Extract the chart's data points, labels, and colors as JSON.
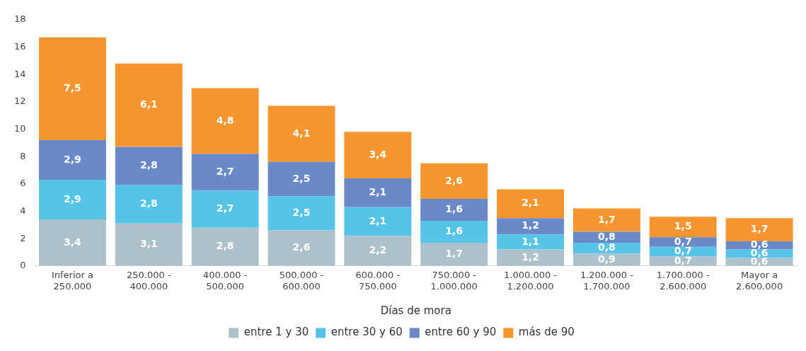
{
  "chart_data": {
    "type": "bar",
    "stacked": true,
    "xlabel": "Días de mora",
    "categories": [
      "Inferior a 250.000",
      "250.000 - 400.000",
      "400.000 - 500.000",
      "500.000 - 600.000",
      "600.000 - 750.000",
      "750.000 - 1.000.000",
      "1.000.000 - 1.200.000",
      "1.200.000 - 1.700.000",
      "1.700.000 - 2.600.000",
      "Mayor a 2.600.000"
    ],
    "series": [
      {
        "name": "entre 1 y 30",
        "color": "#adc1ca",
        "values": [
          3.4,
          3.1,
          2.8,
          2.6,
          2.2,
          1.7,
          1.2,
          0.9,
          0.7,
          0.6
        ],
        "value_labels": [
          "3,4",
          "3,1",
          "2,8",
          "2,6",
          "2,2",
          "1,7",
          "1,2",
          "0,9",
          "0,7",
          "0,6"
        ]
      },
      {
        "name": "entre 30 y 60",
        "color": "#56c4e9",
        "values": [
          2.9,
          2.8,
          2.7,
          2.5,
          2.1,
          1.6,
          1.1,
          0.8,
          0.7,
          0.6
        ],
        "value_labels": [
          "2,9",
          "2,8",
          "2,7",
          "2,5",
          "2,1",
          "1,6",
          "1,1",
          "0,8",
          "0,7",
          "0,6"
        ]
      },
      {
        "name": "entre 60 y 90",
        "color": "#6a89c8",
        "values": [
          2.9,
          2.8,
          2.7,
          2.5,
          2.1,
          1.6,
          1.2,
          0.8,
          0.7,
          0.6
        ],
        "value_labels": [
          "2,9",
          "2,8",
          "2,7",
          "2,5",
          "2,1",
          "1,6",
          "1,2",
          "0,8",
          "0,7",
          "0,6"
        ]
      },
      {
        "name": "más de 90",
        "color": "#f7952f",
        "values": [
          7.5,
          6.1,
          4.8,
          4.1,
          3.4,
          2.6,
          2.1,
          1.7,
          1.5,
          1.7
        ],
        "value_labels": [
          "7,5",
          "6,1",
          "4,8",
          "4,1",
          "3,4",
          "2,6",
          "2,1",
          "1,7",
          "1,5",
          "1,7"
        ]
      }
    ],
    "ylim": [
      0,
      18
    ],
    "yticks": [
      0,
      2,
      4,
      6,
      8,
      10,
      12,
      14,
      16,
      18
    ],
    "grid": false,
    "legend": "bottom"
  }
}
